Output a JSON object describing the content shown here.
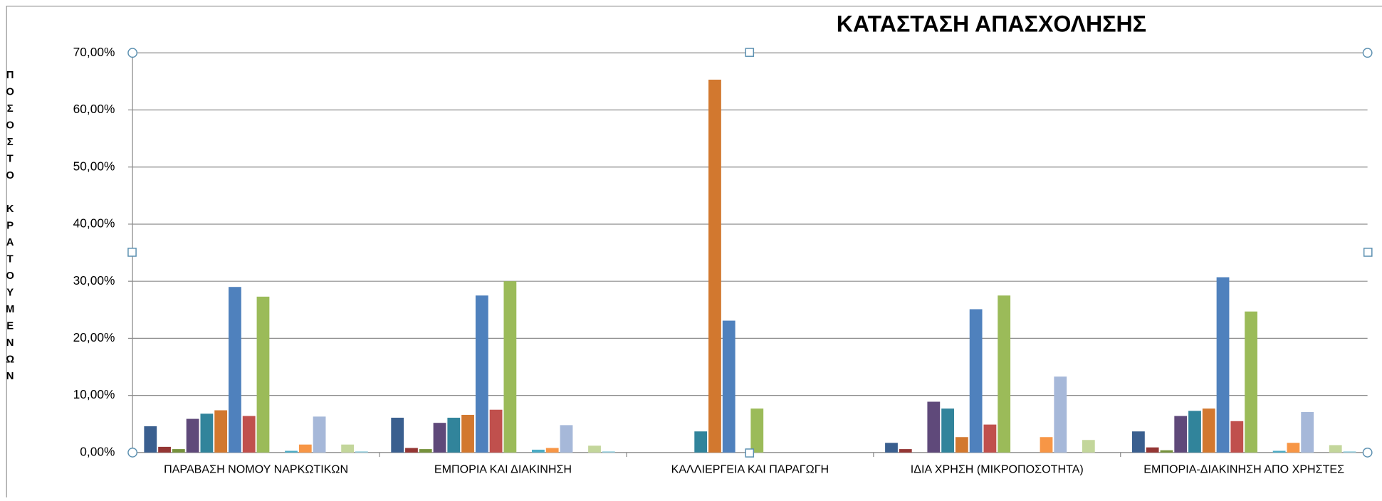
{
  "chart_data": {
    "type": "bar",
    "title": "ΚΑΤΑΣΤΑΣΗ ΑΠΑΣΧΟΛΗΣΗΣ",
    "y_label": "ΠΟΣΟΣΤΟ ΚΡΑΤΟΥΜΕΝΩΝ",
    "categories": [
      "ΠΑΡΑΒΑΣΗ  ΝΟΜΟΥ ΝΑΡΚΩΤΙΚΩΝ",
      "ΕΜΠΟΡΙΑ ΚΑΙ ΔΙΑΚΙΝΗΣΗ",
      "ΚΑΛΛΙΕΡΓΕΙΑ  ΚΑΙ ΠΑΡΑΓΩΓΗ",
      "ΙΔΙΑ ΧΡΗΣΗ (ΜΙΚΡΟΠΟΣΟΤΗΤΑ)",
      "ΕΜΠΟΡΙΑ-ΔΙΑΚΙΝΗΣΗ  ΑΠΟ ΧΡΗΣΤΕΣ"
    ],
    "series": [
      {
        "color": "#3a5f8f",
        "values": [
          4.6,
          6.1,
          0,
          1.7,
          3.7
        ]
      },
      {
        "color": "#943634",
        "values": [
          1.0,
          0.8,
          0,
          0.6,
          0.9
        ]
      },
      {
        "color": "#76923c",
        "values": [
          0.6,
          0.6,
          0,
          0,
          0.4
        ]
      },
      {
        "color": "#5f497a",
        "values": [
          5.9,
          5.2,
          0,
          8.9,
          6.4
        ]
      },
      {
        "color": "#31849b",
        "values": [
          6.8,
          6.1,
          3.7,
          7.7,
          7.3
        ]
      },
      {
        "color": "#d2782f",
        "values": [
          7.4,
          6.6,
          65.3,
          2.7,
          7.7
        ]
      },
      {
        "color": "#4f81bd",
        "values": [
          29.0,
          27.5,
          23.1,
          25.1,
          30.7
        ]
      },
      {
        "color": "#c0504d",
        "values": [
          6.4,
          7.5,
          0,
          4.9,
          5.5
        ]
      },
      {
        "color": "#9bbb59",
        "values": [
          27.3,
          30.0,
          7.7,
          27.5,
          24.7
        ]
      },
      {
        "color": "#8064a2",
        "values": [
          0,
          0,
          0,
          0,
          0
        ]
      },
      {
        "color": "#4bacc6",
        "values": [
          0.3,
          0.5,
          0,
          0,
          0.3
        ]
      },
      {
        "color": "#f79646",
        "values": [
          1.4,
          0.8,
          0,
          2.7,
          1.7
        ]
      },
      {
        "color": "#a6b8d9",
        "values": [
          6.3,
          4.8,
          0,
          13.3,
          7.1
        ]
      },
      {
        "color": "#d99694",
        "values": [
          0,
          0,
          0,
          0,
          0
        ]
      },
      {
        "color": "#c3d69b",
        "values": [
          1.4,
          1.2,
          0,
          2.2,
          1.3
        ]
      },
      {
        "color": "#93cddd",
        "values": [
          0.2,
          0.2,
          0,
          0,
          0.2
        ]
      }
    ],
    "ylim": [
      0,
      70
    ],
    "yticks": [
      {
        "value": 0,
        "label": "0,00%"
      },
      {
        "value": 10,
        "label": "10,00%"
      },
      {
        "value": 20,
        "label": "20,00%"
      },
      {
        "value": 30,
        "label": "30,00%"
      },
      {
        "value": 40,
        "label": "40,00%"
      },
      {
        "value": 50,
        "label": "50,00%"
      },
      {
        "value": 60,
        "label": "60,00%"
      },
      {
        "value": 70,
        "label": "70,00%"
      }
    ],
    "grid": true
  }
}
